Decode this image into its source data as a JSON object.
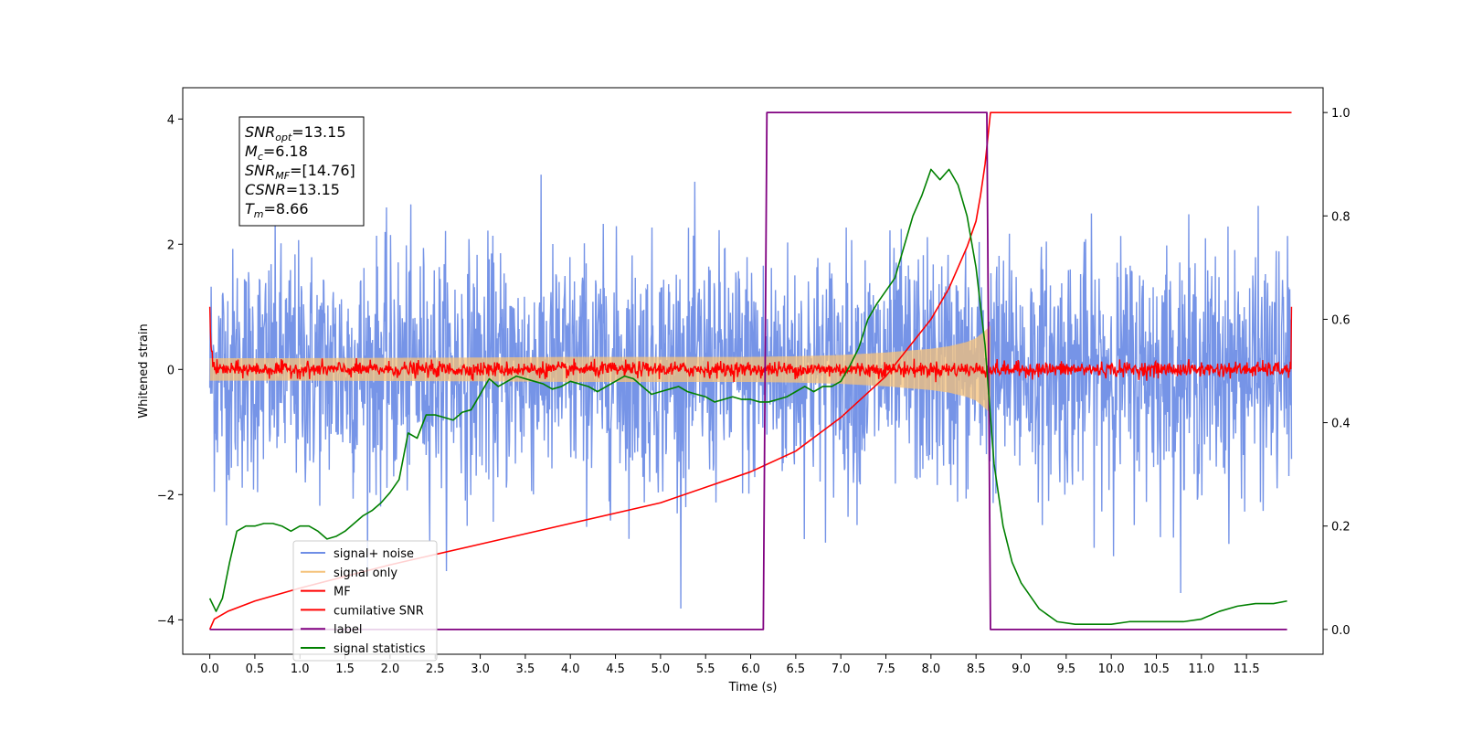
{
  "chart_data": {
    "type": "line",
    "xlabel": "Time (s)",
    "ylabel": "Whitened strain",
    "xlim": [
      -0.3,
      12.35
    ],
    "ylim": [
      -4.55,
      4.5
    ],
    "y2lim": [
      -0.048,
      1.048
    ],
    "grid": false,
    "legend_position": "lower-left",
    "x_ticks": [
      "0.0",
      "0.5",
      "1.0",
      "1.5",
      "2.0",
      "2.5",
      "3.0",
      "3.5",
      "4.0",
      "4.5",
      "5.0",
      "5.5",
      "6.0",
      "6.5",
      "7.0",
      "7.5",
      "8.0",
      "8.5",
      "9.0",
      "9.5",
      "10.0",
      "10.5",
      "11.0",
      "11.5"
    ],
    "y_ticks": [
      "−4",
      "−2",
      "0",
      "2",
      "4"
    ],
    "y2_ticks": [
      "0.0",
      "0.2",
      "0.4",
      "0.6",
      "0.8",
      "1.0"
    ],
    "annotation": {
      "lines": [
        {
          "base": "SNR",
          "sub": "opt",
          "value": "=13.15"
        },
        {
          "base": "M",
          "sub": "c",
          "value": "=6.18"
        },
        {
          "base": "SNR",
          "sub": "MF",
          "value": "=[14.76]"
        },
        {
          "base": "CSNR",
          "sub": "",
          "value": "=13.15"
        },
        {
          "base": "T",
          "sub": "m",
          "value": "=8.66"
        }
      ]
    },
    "series": [
      {
        "name": "signal+ noise",
        "axis": "left",
        "color": "#6f8ee6",
        "kind": "noise",
        "x_range": [
          0,
          12
        ],
        "amplitude_std": 1.0,
        "peak": 4.1
      },
      {
        "name": "signal only",
        "axis": "left",
        "color": "#f5c27a",
        "kind": "chirp-envelope",
        "x": [
          0,
          1,
          2,
          3,
          4,
          5,
          6,
          6.5,
          7,
          7.5,
          8,
          8.2,
          8.4,
          8.5,
          8.6,
          8.66
        ],
        "envelope": [
          0.18,
          0.18,
          0.185,
          0.19,
          0.2,
          0.2,
          0.2,
          0.21,
          0.23,
          0.27,
          0.33,
          0.37,
          0.44,
          0.5,
          0.62,
          0.7
        ]
      },
      {
        "name": "MF",
        "axis": "left",
        "color": "#ff0000",
        "kind": "noise",
        "x_range": [
          0,
          12
        ],
        "amplitude_std": 0.06,
        "edge_value": 1.0
      },
      {
        "name": "cumilative SNR",
        "axis": "right",
        "color": "#ff0000",
        "x": [
          0,
          0.05,
          0.2,
          0.5,
          1,
          2,
          3,
          4,
          5,
          6,
          6.5,
          7,
          7.5,
          8,
          8.2,
          8.4,
          8.5,
          8.55,
          8.6,
          8.63,
          8.66,
          9,
          10,
          11,
          12
        ],
        "values": [
          0.0,
          0.02,
          0.035,
          0.055,
          0.08,
          0.125,
          0.165,
          0.205,
          0.245,
          0.305,
          0.345,
          0.41,
          0.49,
          0.6,
          0.66,
          0.74,
          0.79,
          0.84,
          0.9,
          0.95,
          1.0,
          1.0,
          1.0,
          1.0,
          1.0
        ]
      },
      {
        "name": "label",
        "axis": "right",
        "color": "#800080",
        "x": [
          0,
          6.14,
          6.18,
          8.62,
          8.66,
          11.95
        ],
        "values": [
          0,
          0,
          1,
          1,
          0,
          0
        ]
      },
      {
        "name": "signal statistics",
        "axis": "right",
        "color": "#008000",
        "x": [
          0,
          0.07,
          0.14,
          0.22,
          0.3,
          0.4,
          0.5,
          0.6,
          0.7,
          0.8,
          0.9,
          1.0,
          1.1,
          1.2,
          1.3,
          1.4,
          1.5,
          1.6,
          1.7,
          1.8,
          1.9,
          2.0,
          2.1,
          2.2,
          2.3,
          2.4,
          2.5,
          2.6,
          2.7,
          2.8,
          2.9,
          3.0,
          3.1,
          3.2,
          3.3,
          3.4,
          3.5,
          3.6,
          3.7,
          3.8,
          3.9,
          4.0,
          4.1,
          4.2,
          4.3,
          4.4,
          4.5,
          4.6,
          4.7,
          4.8,
          4.9,
          5.0,
          5.1,
          5.2,
          5.3,
          5.4,
          5.5,
          5.6,
          5.7,
          5.8,
          5.9,
          6.0,
          6.1,
          6.2,
          6.3,
          6.4,
          6.5,
          6.6,
          6.7,
          6.8,
          6.9,
          7.0,
          7.1,
          7.2,
          7.3,
          7.4,
          7.5,
          7.6,
          7.7,
          7.8,
          7.9,
          8.0,
          8.1,
          8.2,
          8.3,
          8.4,
          8.5,
          8.6,
          8.7,
          8.8,
          8.9,
          9.0,
          9.2,
          9.4,
          9.6,
          9.8,
          10.0,
          10.2,
          10.4,
          10.6,
          10.8,
          11.0,
          11.2,
          11.4,
          11.6,
          11.8,
          11.95
        ],
        "values": [
          0.06,
          0.035,
          0.06,
          0.13,
          0.19,
          0.2,
          0.2,
          0.205,
          0.205,
          0.2,
          0.19,
          0.2,
          0.2,
          0.19,
          0.175,
          0.18,
          0.19,
          0.205,
          0.22,
          0.23,
          0.245,
          0.265,
          0.29,
          0.38,
          0.37,
          0.415,
          0.415,
          0.41,
          0.405,
          0.42,
          0.425,
          0.455,
          0.485,
          0.47,
          0.48,
          0.49,
          0.485,
          0.48,
          0.475,
          0.465,
          0.47,
          0.48,
          0.475,
          0.47,
          0.46,
          0.47,
          0.48,
          0.49,
          0.485,
          0.47,
          0.455,
          0.46,
          0.465,
          0.47,
          0.46,
          0.455,
          0.45,
          0.44,
          0.445,
          0.45,
          0.445,
          0.445,
          0.44,
          0.44,
          0.445,
          0.45,
          0.46,
          0.47,
          0.46,
          0.47,
          0.47,
          0.48,
          0.51,
          0.545,
          0.6,
          0.63,
          0.655,
          0.68,
          0.74,
          0.8,
          0.84,
          0.89,
          0.87,
          0.89,
          0.86,
          0.8,
          0.7,
          0.55,
          0.32,
          0.2,
          0.13,
          0.09,
          0.04,
          0.015,
          0.01,
          0.01,
          0.01,
          0.015,
          0.015,
          0.015,
          0.015,
          0.02,
          0.035,
          0.045,
          0.05,
          0.05,
          0.055
        ]
      }
    ]
  }
}
